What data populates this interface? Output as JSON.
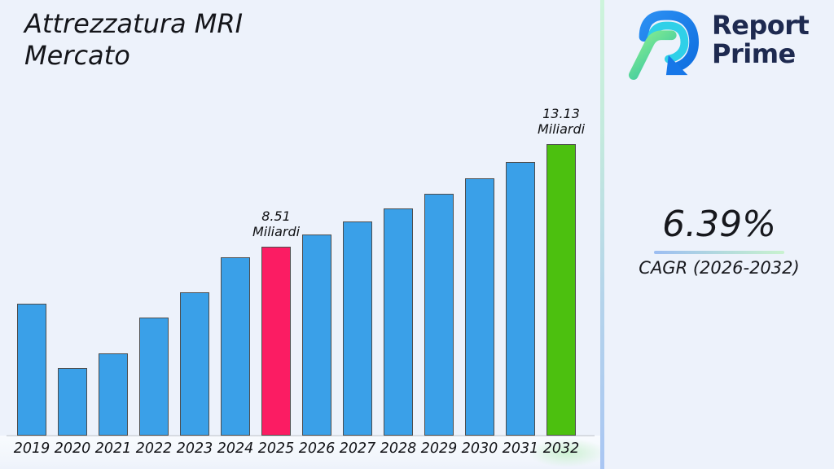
{
  "page": {
    "background": "#edf2fb"
  },
  "header": {
    "title_line1": "Attrezzatura MRI",
    "title_line2": "Mercato"
  },
  "logo": {
    "brand_line1": "Report",
    "brand_line2": "Prime",
    "text_color": "#1e2a50",
    "icon_colors": {
      "blue": "#1a7ae8",
      "cyan": "#2fd0e8",
      "green_light": "#8df08e",
      "green_teal": "#2fc3a5"
    }
  },
  "cagr": {
    "value": "6.39%",
    "label": "CAGR (2026-2032)"
  },
  "chart_data": {
    "type": "bar",
    "title": "Attrezzatura MRI Mercato",
    "unit": "Miliardi",
    "categories": [
      "2019",
      "2020",
      "2021",
      "2022",
      "2023",
      "2024",
      "2025",
      "2026",
      "2027",
      "2028",
      "2029",
      "2030",
      "2031",
      "2032"
    ],
    "values": [
      5.93,
      3.04,
      3.72,
      5.32,
      6.46,
      8.05,
      8.51,
      9.05,
      9.63,
      10.25,
      10.9,
      11.6,
      12.34,
      13.13
    ],
    "bar_default_color": "#3aa0e8",
    "bar_edge_color": "#4d4d4d",
    "highlights": {
      "2025": "#fb1c63",
      "2032": "#4cc00f"
    },
    "annotations": [
      {
        "category": "2025",
        "text": "8.51\nMiliardi"
      },
      {
        "category": "2032",
        "text": "13.13\nMiliardi"
      }
    ],
    "xlabel": "",
    "ylabel": "",
    "ylim": [
      0,
      13.13
    ],
    "grid": false,
    "legend": "none"
  }
}
